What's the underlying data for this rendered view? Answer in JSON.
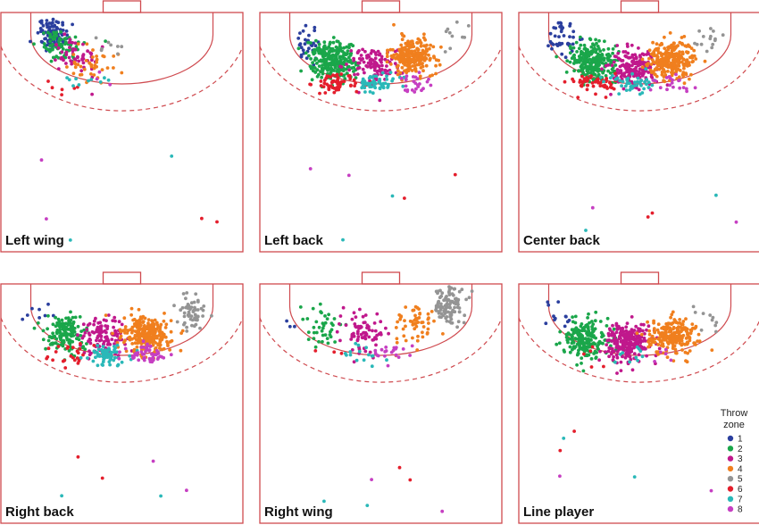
{
  "chart_data": {
    "type": "scatter",
    "title": "",
    "panels": [
      {
        "label": "Left wing",
        "zone_centers": {
          "1": [
            0.62,
            0.52
          ],
          "2": [
            0.55,
            0.45
          ],
          "3": [
            0.42,
            0.38
          ],
          "4": [
            0.25,
            0.32
          ],
          "5": [
            0.12,
            0.44
          ],
          "6": [
            0.6,
            0.18
          ],
          "7": [
            0.37,
            0.22
          ],
          "8": [
            0.22,
            0.21
          ]
        },
        "zone_counts": {
          "1": 95,
          "2": 80,
          "3": 55,
          "4": 40,
          "5": 8,
          "6": 6,
          "7": 10,
          "8": 3
        }
      },
      {
        "label": "Left back",
        "zone_centers": {
          "1": [
            0.65,
            0.46
          ],
          "2": [
            0.43,
            0.35
          ],
          "3": [
            0.06,
            0.32
          ],
          "4": [
            -0.28,
            0.38
          ],
          "5": [
            -0.62,
            0.5
          ],
          "6": [
            0.4,
            0.2
          ],
          "7": [
            0.03,
            0.2
          ],
          "8": [
            -0.28,
            0.2
          ]
        },
        "zone_counts": {
          "1": 30,
          "2": 260,
          "3": 110,
          "4": 220,
          "5": 10,
          "6": 60,
          "7": 55,
          "8": 25
        }
      },
      {
        "label": "Center back",
        "zone_centers": {
          "1": [
            0.7,
            0.5
          ],
          "2": [
            0.42,
            0.35
          ],
          "3": [
            0.05,
            0.3
          ],
          "4": [
            -0.28,
            0.36
          ],
          "5": [
            -0.6,
            0.48
          ],
          "6": [
            0.42,
            0.2
          ],
          "7": [
            0.06,
            0.2
          ],
          "8": [
            -0.26,
            0.2
          ]
        },
        "zone_counts": {
          "1": 40,
          "2": 260,
          "3": 200,
          "4": 260,
          "5": 15,
          "6": 55,
          "7": 45,
          "8": 20
        }
      },
      {
        "label": "Right back",
        "zone_centers": {
          "1": [
            0.72,
            0.48
          ],
          "2": [
            0.5,
            0.34
          ],
          "3": [
            0.18,
            0.33
          ],
          "4": [
            -0.22,
            0.33
          ],
          "5": [
            -0.62,
            0.48
          ],
          "6": [
            0.45,
            0.2
          ],
          "7": [
            0.14,
            0.2
          ],
          "8": [
            -0.22,
            0.2
          ]
        },
        "zone_counts": {
          "1": 8,
          "2": 150,
          "3": 110,
          "4": 280,
          "5": 60,
          "6": 25,
          "7": 70,
          "8": 50
        }
      },
      {
        "label": "Right wing",
        "zone_centers": {
          "1": [
            0.78,
            0.45
          ],
          "2": [
            0.52,
            0.38
          ],
          "3": [
            0.15,
            0.34
          ],
          "4": [
            -0.3,
            0.4
          ],
          "5": [
            -0.6,
            0.52
          ],
          "6": [
            0.4,
            0.22
          ],
          "7": [
            0.18,
            0.2
          ],
          "8": [
            -0.1,
            0.22
          ]
        },
        "zone_counts": {
          "1": 3,
          "2": 40,
          "3": 75,
          "4": 55,
          "5": 110,
          "6": 3,
          "7": 15,
          "8": 20
        }
      },
      {
        "label": "Line player",
        "zone_centers": {
          "1": [
            0.75,
            0.44
          ],
          "2": [
            0.48,
            0.3
          ],
          "3": [
            0.1,
            0.29
          ],
          "4": [
            -0.28,
            0.32
          ],
          "5": [
            -0.62,
            0.42
          ],
          "6": [
            0.45,
            0.18
          ],
          "7": [
            0.1,
            0.19
          ],
          "8": [
            -0.22,
            0.19
          ]
        },
        "zone_counts": {
          "1": 12,
          "2": 200,
          "3": 230,
          "4": 230,
          "5": 10,
          "6": 5,
          "7": 10,
          "8": 5
        }
      }
    ],
    "legend": {
      "title": "Throw zone",
      "placement": "bottom-right",
      "entries": [
        {
          "label": "1",
          "color": "#2b3f9e"
        },
        {
          "label": "2",
          "color": "#1aa64a"
        },
        {
          "label": "3",
          "color": "#c0188c"
        },
        {
          "label": "4",
          "color": "#f07f1e"
        },
        {
          "label": "5",
          "color": "#949494"
        },
        {
          "label": "6",
          "color": "#e41e2c"
        },
        {
          "label": "7",
          "color": "#2ab8b8"
        },
        {
          "label": "8",
          "color": "#c63fc2"
        }
      ]
    }
  }
}
